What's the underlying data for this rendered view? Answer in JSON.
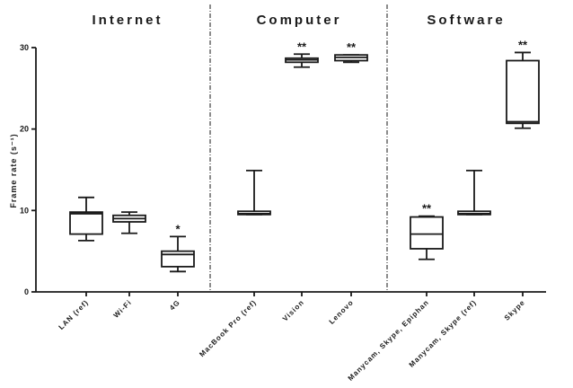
{
  "chart_data": {
    "type": "box",
    "ylabel": "Frame rate (s⁻¹)",
    "ylim": [
      0,
      30
    ],
    "yticks": [
      "0",
      "10",
      "20",
      "30"
    ],
    "groups": [
      {
        "title": "Internet",
        "categories": [
          "LAN (ref)",
          "Wi-Fi",
          "4G"
        ]
      },
      {
        "title": "Computer",
        "categories": [
          "MacBook Pro (ref)",
          "Vision",
          "Lenovo"
        ]
      },
      {
        "title": "Software",
        "categories": [
          "Manycam, Skype, Epiphan",
          "Manycam, Skype (ref)",
          "Skype"
        ]
      }
    ],
    "boxes": [
      {
        "category": "LAN (ref)",
        "min": 6.3,
        "q1": 7.1,
        "median": 9.6,
        "q3": 9.8,
        "max": 11.6,
        "significance": ""
      },
      {
        "category": "Wi-Fi",
        "min": 7.2,
        "q1": 8.6,
        "median": 9.0,
        "q3": 9.4,
        "max": 9.8,
        "significance": ""
      },
      {
        "category": "4G",
        "min": 2.5,
        "q1": 3.1,
        "median": 4.6,
        "q3": 5.0,
        "max": 6.8,
        "significance": "*"
      },
      {
        "category": "MacBook Pro (ref)",
        "min": 9.5,
        "q1": 9.5,
        "median": 9.6,
        "q3": 9.9,
        "max": 14.9,
        "significance": ""
      },
      {
        "category": "Vision",
        "min": 27.6,
        "q1": 28.2,
        "median": 28.5,
        "q3": 28.7,
        "max": 29.2,
        "significance": "**"
      },
      {
        "category": "Lenovo",
        "min": 28.2,
        "q1": 28.4,
        "median": 28.8,
        "q3": 29.1,
        "max": 29.1,
        "significance": "**"
      },
      {
        "category": "Manycam, Skype, Epiphan",
        "min": 4.0,
        "q1": 5.3,
        "median": 7.1,
        "q3": 9.2,
        "max": 9.3,
        "significance": "**"
      },
      {
        "category": "Manycam, Skype (ref)",
        "min": 9.5,
        "q1": 9.5,
        "median": 9.6,
        "q3": 9.9,
        "max": 14.9,
        "significance": ""
      },
      {
        "category": "Skype",
        "min": 20.1,
        "q1": 20.7,
        "median": 20.9,
        "q3": 28.4,
        "max": 29.4,
        "significance": "**"
      }
    ]
  }
}
